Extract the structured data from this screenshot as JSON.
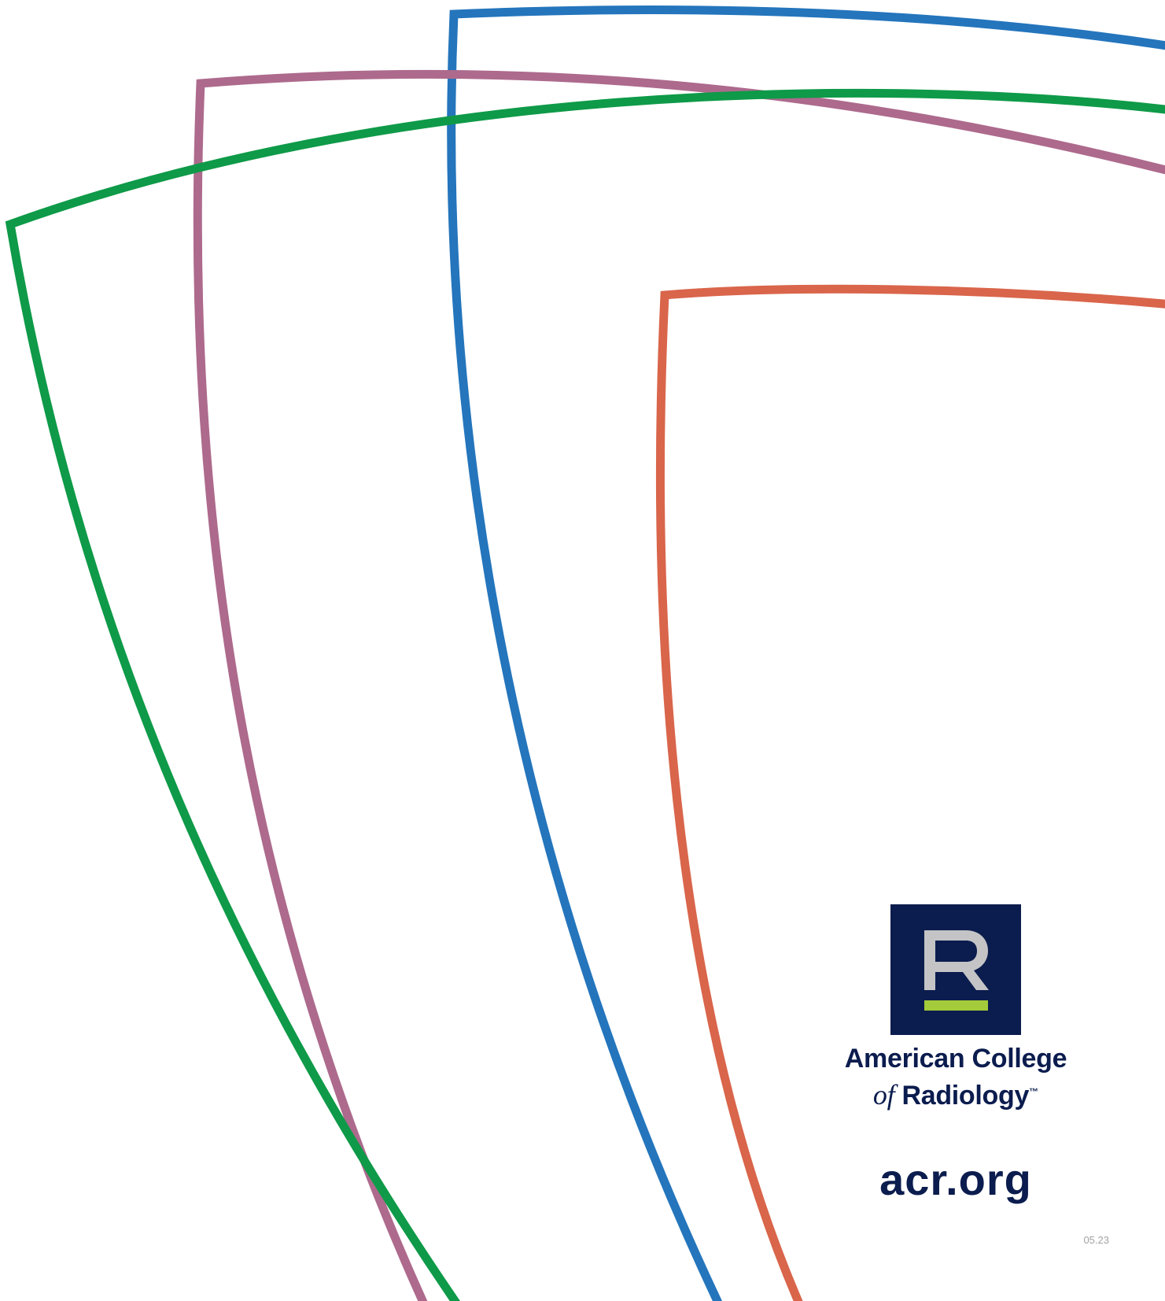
{
  "brand": {
    "name_line1": "American College",
    "name_line2_prefix": "of",
    "name_line2_main": "Radiology",
    "trademark": "™",
    "logo_letter": "R",
    "website": "acr.org",
    "date_code": "05.23"
  },
  "colors": {
    "navy": "#0b1c4e",
    "logo_letter_gray": "#c4c4c6",
    "logo_bar_green": "#a4cb3a",
    "arc_blue": "#2475bc",
    "arc_pink": "#ad6a8d",
    "arc_green": "#0e9a48",
    "arc_orange": "#d9654b",
    "date_gray": "#a3a3a3"
  },
  "decorations": [
    {
      "name": "arc-blue",
      "color_key": "arc_blue"
    },
    {
      "name": "arc-pink",
      "color_key": "arc_pink"
    },
    {
      "name": "arc-green",
      "color_key": "arc_green"
    },
    {
      "name": "arc-orange",
      "color_key": "arc_orange"
    }
  ]
}
